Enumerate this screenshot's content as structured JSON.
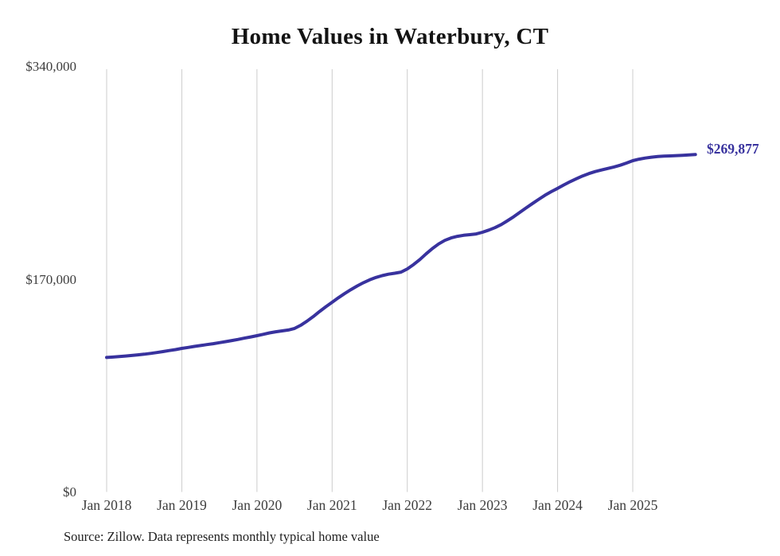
{
  "colors": {
    "background": "#ffffff",
    "grid": "#cccccc",
    "line": "#38329e",
    "end_label": "#38329e",
    "title_text": "#131313",
    "axis_text": "#3d3d3d",
    "source_text": "#1f1f1f"
  },
  "footer": {
    "source_note": "Source: Zillow. Data represents monthly typical home value"
  },
  "chart_data": {
    "type": "line",
    "title": "Home Values in Waterbury, CT",
    "xlabel": "",
    "ylabel": "",
    "ylim": [
      0,
      340000
    ],
    "y_ticks": [
      0,
      170000,
      340000
    ],
    "y_tick_labels": [
      "$0",
      "$170,000",
      "$340,000"
    ],
    "x_tick_labels": [
      "Jan 2018",
      "Jan 2019",
      "Jan 2020",
      "Jan 2021",
      "Jan 2022",
      "Jan 2023",
      "Jan 2024",
      "Jan 2025"
    ],
    "grid": "vertical-only",
    "legend_position": "none",
    "line_color": "#38329e",
    "end_point_label": "$269,877",
    "end_point_value": 269877,
    "series": [
      {
        "name": "Typical home value",
        "cadence": "monthly",
        "first_point_label": "Jan 2018",
        "values": [
          107800,
          108100,
          108500,
          108900,
          109400,
          109900,
          110400,
          111000,
          111700,
          112500,
          113300,
          114100,
          115000,
          115800,
          116600,
          117300,
          118100,
          118800,
          119600,
          120400,
          121300,
          122200,
          123200,
          124200,
          125200,
          126300,
          127400,
          128300,
          129000,
          129700,
          131000,
          133500,
          136800,
          140500,
          144500,
          148300,
          151900,
          155500,
          158800,
          162000,
          164900,
          167500,
          169800,
          171700,
          173200,
          174300,
          175100,
          176000,
          178500,
          182000,
          186000,
          190500,
          194800,
          198500,
          201300,
          203300,
          204600,
          205400,
          205900,
          206500,
          207800,
          209500,
          211500,
          214000,
          217000,
          220300,
          223800,
          227300,
          230800,
          234200,
          237400,
          240300,
          242900,
          245600,
          248200,
          250600,
          252800,
          254700,
          256300,
          257600,
          258800,
          260000,
          261400,
          263100,
          265000,
          266200,
          267100,
          267800,
          268300,
          268600,
          268800,
          269100,
          269300,
          269600,
          269877
        ]
      }
    ]
  }
}
